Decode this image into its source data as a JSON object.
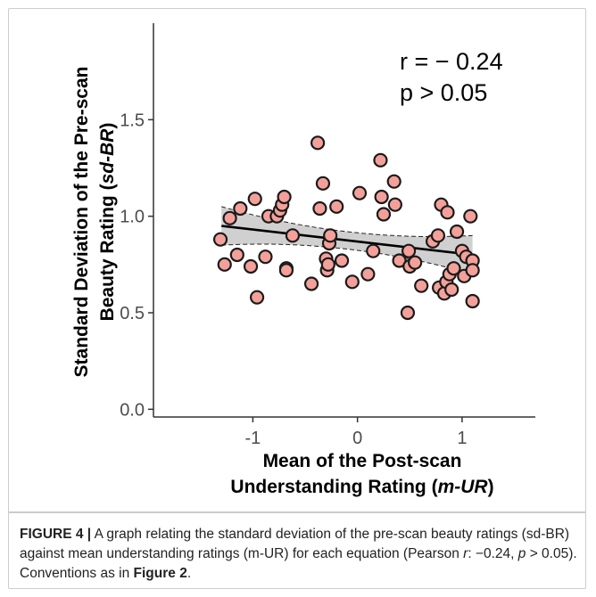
{
  "chart_data": {
    "type": "scatter",
    "xlabel_line1": "Mean of the Post-scan",
    "xlabel_line2_prefix": "Understanding Rating (",
    "xlabel_line2_italic": "m-UR",
    "xlabel_line2_suffix": ")",
    "ylabel_line1_prefix": "Standard Deviation of the Pre-scan",
    "ylabel_line2_prefix": "Beauty Rating (",
    "ylabel_line2_italic": "sd-BR",
    "ylabel_line2_suffix": ")",
    "xlim": [
      -1.95,
      1.7
    ],
    "ylim": [
      -0.04,
      2.0
    ],
    "x_ticks": [
      -1,
      0,
      1
    ],
    "x_tick_labels": [
      "-1",
      "0",
      "1"
    ],
    "y_ticks": [
      0.0,
      0.5,
      1.0,
      1.5
    ],
    "y_tick_labels": [
      "0.0",
      "0.5",
      "1.0",
      "1.5"
    ],
    "grid": false,
    "annotation_r": "r = − 0.24",
    "annotation_p": "p > 0.05",
    "regression": {
      "x_start": -1.3,
      "x_end": 1.1,
      "y_start": 0.95,
      "y_end": 0.8,
      "ci_half_width_ends": 0.1,
      "ci_half_width_mid": 0.045
    },
    "colors": {
      "point_fill": "#f4a09a",
      "point_stroke": "#1a1a1a",
      "line": "#000000",
      "band": "#c8c8c8"
    },
    "points": [
      {
        "x": -1.31,
        "y": 0.88
      },
      {
        "x": -1.27,
        "y": 0.75
      },
      {
        "x": -1.22,
        "y": 0.99
      },
      {
        "x": -1.15,
        "y": 0.8
      },
      {
        "x": -1.12,
        "y": 1.04
      },
      {
        "x": -1.02,
        "y": 0.74
      },
      {
        "x": -0.98,
        "y": 1.09
      },
      {
        "x": -0.96,
        "y": 0.58
      },
      {
        "x": -0.88,
        "y": 0.79
      },
      {
        "x": -0.85,
        "y": 1.0
      },
      {
        "x": -0.77,
        "y": 1.0
      },
      {
        "x": -0.74,
        "y": 1.03
      },
      {
        "x": -0.72,
        "y": 1.06
      },
      {
        "x": -0.7,
        "y": 1.1
      },
      {
        "x": -0.68,
        "y": 0.73
      },
      {
        "x": -0.68,
        "y": 0.72
      },
      {
        "x": -0.62,
        "y": 0.9
      },
      {
        "x": -0.44,
        "y": 0.65
      },
      {
        "x": -0.38,
        "y": 1.38
      },
      {
        "x": -0.36,
        "y": 1.04
      },
      {
        "x": -0.33,
        "y": 1.17
      },
      {
        "x": -0.3,
        "y": 0.78
      },
      {
        "x": -0.29,
        "y": 0.72
      },
      {
        "x": -0.28,
        "y": 0.75
      },
      {
        "x": -0.27,
        "y": 0.86
      },
      {
        "x": -0.26,
        "y": 0.9
      },
      {
        "x": -0.2,
        "y": 1.05
      },
      {
        "x": -0.15,
        "y": 0.77
      },
      {
        "x": -0.05,
        "y": 0.66
      },
      {
        "x": 0.02,
        "y": 1.12
      },
      {
        "x": 0.1,
        "y": 0.7
      },
      {
        "x": 0.15,
        "y": 0.82
      },
      {
        "x": 0.22,
        "y": 1.29
      },
      {
        "x": 0.23,
        "y": 1.1
      },
      {
        "x": 0.25,
        "y": 1.01
      },
      {
        "x": 0.35,
        "y": 1.18
      },
      {
        "x": 0.36,
        "y": 1.06
      },
      {
        "x": 0.4,
        "y": 0.77
      },
      {
        "x": 0.48,
        "y": 0.5
      },
      {
        "x": 0.49,
        "y": 0.82
      },
      {
        "x": 0.5,
        "y": 0.74
      },
      {
        "x": 0.55,
        "y": 0.76
      },
      {
        "x": 0.61,
        "y": 0.64
      },
      {
        "x": 0.72,
        "y": 0.87
      },
      {
        "x": 0.77,
        "y": 0.9
      },
      {
        "x": 0.78,
        "y": 0.63
      },
      {
        "x": 0.8,
        "y": 1.06
      },
      {
        "x": 0.83,
        "y": 0.6
      },
      {
        "x": 0.85,
        "y": 0.66
      },
      {
        "x": 0.86,
        "y": 1.02
      },
      {
        "x": 0.88,
        "y": 0.7
      },
      {
        "x": 0.9,
        "y": 0.62
      },
      {
        "x": 0.92,
        "y": 0.73
      },
      {
        "x": 0.95,
        "y": 0.92
      },
      {
        "x": 1.0,
        "y": 0.82
      },
      {
        "x": 1.02,
        "y": 0.69
      },
      {
        "x": 1.04,
        "y": 0.79
      },
      {
        "x": 1.08,
        "y": 1.0
      },
      {
        "x": 1.1,
        "y": 0.77
      },
      {
        "x": 1.1,
        "y": 0.72
      },
      {
        "x": 1.1,
        "y": 0.56
      }
    ]
  },
  "caption": {
    "figure_label": "FIGURE 4 |",
    "text_1": " A graph relating the standard deviation of the pre-scan beauty ratings (sd-BR) against mean understanding ratings (m-UR) for each equation (Pearson ",
    "r_symbol": "r",
    "text_2": ": −0.24, ",
    "p_symbol": "p",
    "text_3": " > 0.05). Conventions as in ",
    "figure_ref": "Figure 2",
    "text_4": "."
  }
}
